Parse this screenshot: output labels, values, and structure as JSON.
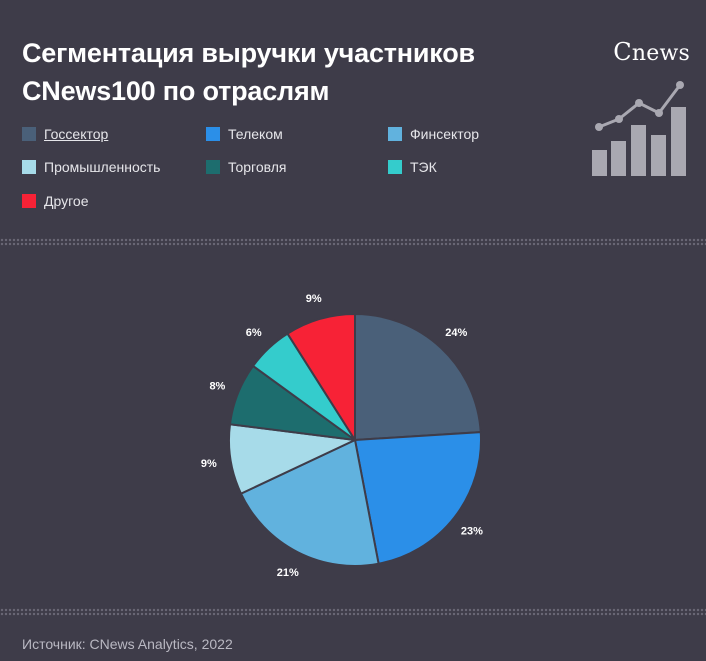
{
  "header": {
    "title_line1": "Сегментация выручки участников",
    "title_line2": "CNews100 по отраслям",
    "brand_c": "C",
    "brand_rest": "news"
  },
  "legend": {
    "items": [
      {
        "label": "Госсектор",
        "color": "#4a6079"
      },
      {
        "label": "Телеком",
        "color": "#2b8fe8"
      },
      {
        "label": "Финсектор",
        "color": "#61b2de"
      },
      {
        "label": "Промышленность",
        "color": "#a7dbe9"
      },
      {
        "label": "Торговля",
        "color": "#1d6d6e"
      },
      {
        "label": "ТЭК",
        "color": "#34cccc"
      },
      {
        "label": "Другое",
        "color": "#f72236"
      }
    ]
  },
  "chart_data": {
    "type": "pie",
    "title": "Сегментация выручки участников CNews100 по отраслям",
    "slices": [
      {
        "label": "Госсектор",
        "value": 24,
        "display": "24%",
        "color": "#4a6079"
      },
      {
        "label": "Телеком",
        "value": 23,
        "display": "23%",
        "color": "#2b8fe8"
      },
      {
        "label": "Финсектор",
        "value": 21,
        "display": "21%",
        "color": "#61b2de"
      },
      {
        "label": "Промышленность",
        "value": 9,
        "display": "9%",
        "color": "#a7dbe9"
      },
      {
        "label": "Торговля",
        "value": 8,
        "display": "8%",
        "color": "#1d6d6e"
      },
      {
        "label": "ТЭК",
        "value": 6,
        "display": "6%",
        "color": "#34cccc"
      },
      {
        "label": "Другое",
        "value": 9,
        "display": "9%",
        "color": "#f72236"
      }
    ],
    "legend_position": "top-left"
  },
  "footer": {
    "source": "Источник: CNews Analytics, 2022"
  }
}
